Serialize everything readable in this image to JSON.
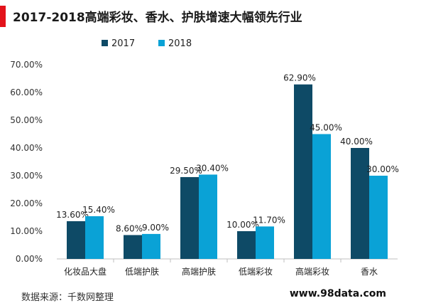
{
  "header": {
    "title": "2017-2018高端彩妆、香水、护肤增速大幅领先行业"
  },
  "footer": {
    "source": "数据来源：千数网整理",
    "url": "www.98data.com"
  },
  "colors": {
    "accent": "#e3131b",
    "series2017": "#0e4a66",
    "series2018": "#0aa2d6"
  },
  "chart_data": {
    "type": "bar",
    "title": "2017-2018高端彩妆、香水、护肤增速大幅领先行业",
    "xlabel": "",
    "ylabel": "",
    "categories": [
      "化妆品大盘",
      "低端护肤",
      "高端护肤",
      "低端彩妆",
      "高端彩妆",
      "香水"
    ],
    "series": [
      {
        "name": "2017",
        "values": [
          13.6,
          8.6,
          29.5,
          10.0,
          62.9,
          40.0
        ],
        "labels": [
          "13.60%",
          "8.60%",
          "29.50%",
          "10.00%",
          "62.90%",
          "40.00%"
        ]
      },
      {
        "name": "2018",
        "values": [
          15.4,
          9.0,
          30.4,
          11.7,
          45.0,
          30.0
        ],
        "labels": [
          "15.40%",
          "9.00%",
          "30.40%",
          "11.70%",
          "45.00%",
          "30.00%"
        ]
      }
    ],
    "ylim": [
      0,
      70
    ],
    "yticks": [
      "0.00%",
      "10.00%",
      "20.00%",
      "30.00%",
      "40.00%",
      "50.00%",
      "60.00%",
      "70.00%"
    ],
    "grid": false,
    "legend": "top-center"
  }
}
